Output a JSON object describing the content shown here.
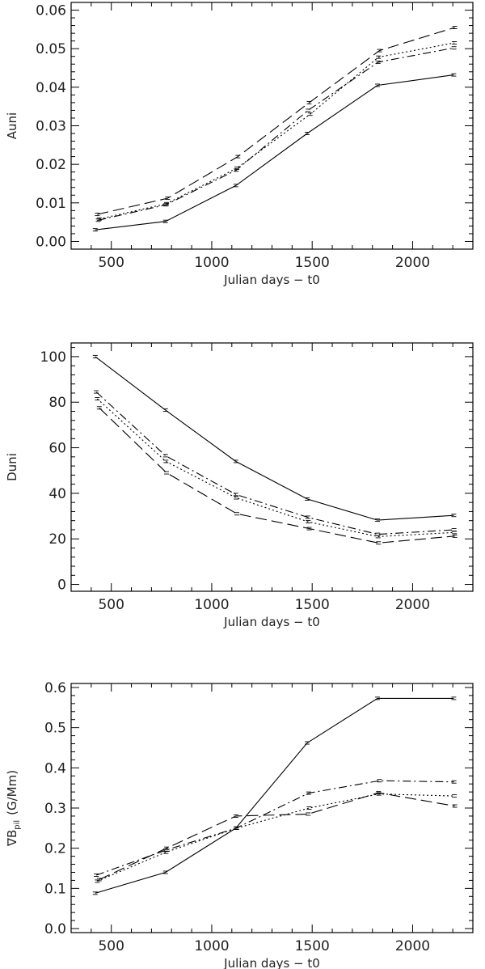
{
  "chart_data": [
    {
      "type": "line",
      "title": "",
      "xlabel": "Julian days − t0",
      "ylabel": "Auni",
      "xlim": [
        300,
        2300
      ],
      "ylim": [
        -0.002,
        0.062
      ],
      "xticks": [
        500,
        1000,
        1500,
        2000
      ],
      "yticks": [
        0.0,
        0.01,
        0.02,
        0.03,
        0.04,
        0.05,
        0.06
      ],
      "ytick_labels": [
        "0.00",
        "0.01",
        "0.02",
        "0.03",
        "0.04",
        "0.05",
        "0.06"
      ],
      "grid": false,
      "series": [
        {
          "dash": "solid",
          "x": [
            420,
            770,
            1120,
            1475,
            1825,
            2205
          ],
          "y": [
            0.003,
            0.0052,
            0.0145,
            0.028,
            0.0405,
            0.0432
          ]
        },
        {
          "dash": "dashed",
          "x": [
            430,
            780,
            1130,
            1485,
            1835,
            2210
          ],
          "y": [
            0.007,
            0.0112,
            0.022,
            0.036,
            0.0495,
            0.0555
          ]
        },
        {
          "dash": "dotted",
          "x": [
            440,
            775,
            1125,
            1490,
            1830,
            2208
          ],
          "y": [
            0.0058,
            0.0098,
            0.019,
            0.033,
            0.0478,
            0.0515
          ]
        },
        {
          "dash": "dash-dot",
          "x": [
            435,
            772,
            1122,
            1480,
            1828,
            2206
          ],
          "y": [
            0.0055,
            0.0095,
            0.0185,
            0.034,
            0.0465,
            0.0502
          ]
        }
      ]
    },
    {
      "type": "line",
      "title": "",
      "xlabel": "Julian days − t0",
      "ylabel": "Duni",
      "xlim": [
        300,
        2300
      ],
      "ylim": [
        -3,
        106
      ],
      "xticks": [
        500,
        1000,
        1500,
        2000
      ],
      "yticks": [
        0,
        20,
        40,
        60,
        80,
        100
      ],
      "ytick_labels": [
        "0",
        "20",
        "40",
        "60",
        "80",
        "100"
      ],
      "grid": false,
      "series": [
        {
          "dash": "solid",
          "x": [
            420,
            770,
            1120,
            1475,
            1825,
            2205
          ],
          "y": [
            100.0,
            76.5,
            54.0,
            37.5,
            28.2,
            30.3
          ]
        },
        {
          "dash": "dashed",
          "x": [
            440,
            775,
            1125,
            1485,
            1830,
            2210
          ],
          "y": [
            77.5,
            49.0,
            31.0,
            24.5,
            18.2,
            21.2
          ]
        },
        {
          "dash": "dotted",
          "x": [
            430,
            772,
            1122,
            1480,
            1828,
            2208
          ],
          "y": [
            81.5,
            54.0,
            38.0,
            27.5,
            21.0,
            22.8
          ]
        },
        {
          "dash": "dash-dot",
          "x": [
            425,
            770,
            1120,
            1478,
            1826,
            2206
          ],
          "y": [
            84.5,
            56.5,
            39.5,
            29.5,
            22.0,
            24.0
          ]
        }
      ]
    },
    {
      "type": "line",
      "title": "",
      "xlabel": "Julian days − t0",
      "ylabel_symbol": "∇B",
      "ylabel_subscript": "pil",
      "ylabel_unit": "(G/Mm)",
      "xlim": [
        300,
        2300
      ],
      "ylim": [
        -0.01,
        0.61
      ],
      "xticks": [
        500,
        1000,
        1500,
        2000
      ],
      "yticks": [
        0.0,
        0.1,
        0.2,
        0.3,
        0.4,
        0.5,
        0.6
      ],
      "ytick_labels": [
        "0.0",
        "0.1",
        "0.2",
        "0.3",
        "0.4",
        "0.5",
        "0.6"
      ],
      "grid": false,
      "series": [
        {
          "dash": "solid",
          "x": [
            420,
            770,
            1120,
            1475,
            1825,
            2205
          ],
          "y": [
            0.088,
            0.14,
            0.25,
            0.462,
            0.573,
            0.573
          ]
        },
        {
          "dash": "dashed",
          "x": [
            440,
            775,
            1120,
            1480,
            1830,
            2210
          ],
          "y": [
            0.122,
            0.2,
            0.28,
            0.285,
            0.338,
            0.305
          ]
        },
        {
          "dash": "dotted",
          "x": [
            430,
            772,
            1125,
            1485,
            1832,
            2208
          ],
          "y": [
            0.118,
            0.19,
            0.25,
            0.3,
            0.335,
            0.33
          ]
        },
        {
          "dash": "dash-dot",
          "x": [
            425,
            770,
            1122,
            1482,
            1835,
            2206
          ],
          "y": [
            0.133,
            0.195,
            0.25,
            0.337,
            0.368,
            0.365
          ]
        }
      ]
    }
  ]
}
